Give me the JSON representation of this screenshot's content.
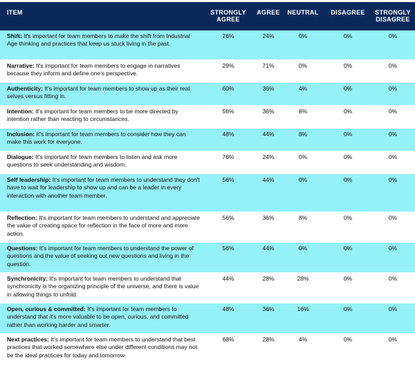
{
  "header": {
    "item": "ITEM",
    "strongly_agree": "STRONGLY AGREE",
    "agree": "AGREE",
    "neutral": "NEUTRAL",
    "disagree": "DISAGREE",
    "strongly_disagree": "STRONGLY DISAGREE"
  },
  "rows": [
    {
      "name": "Shift:",
      "text": " It's important for team members to make the shift from Industrial Age thinking and practices that keep us stuck living in the past.",
      "sa": "76%",
      "a": "24%",
      "n": "0%",
      "d": "0%",
      "sd": "0%"
    },
    {
      "name": "Narrative:",
      "text": " It's important for team members to engage in narratives because they inform and define one's perspective.",
      "sa": "29%",
      "a": "71%",
      "n": "0%",
      "d": "0%",
      "sd": "0%"
    },
    {
      "name": "Authenticity:",
      "text": " It's important for team members to show up as their real selves versus fitting in.",
      "sa": "60%",
      "a": "36%",
      "n": "4%",
      "d": "0%",
      "sd": "0%"
    },
    {
      "name": "Intention:",
      "text": " It's important for team members to be more directed by intention rather than reacting to circumstances.",
      "sa": "56%",
      "a": "36%",
      "n": "8%",
      "d": "0%",
      "sd": "0%"
    },
    {
      "name": "Inclusion:",
      "text": " It's important for team members to consider how they can make this work for everyone.",
      "sa": "48%",
      "a": "44%",
      "n": "8%",
      "d": "0%",
      "sd": "0%"
    },
    {
      "name": "Dialogue:",
      "text": " It's important for team members to listen and ask more questions to seek understanding and wisdom.",
      "sa": "76%",
      "a": "24%",
      "n": "0%",
      "d": "0%",
      "sd": "0%"
    },
    {
      "name": "Self leadership:",
      "text": " It's important for team members to understand they don't have to wait for leadership to show up and can be a leader in every interaction with another team member.",
      "sa": "56%",
      "a": "44%",
      "n": "0%",
      "d": "0%",
      "sd": "0%"
    },
    {
      "name": "Reflection:",
      "text": " It's important for team members to understand and appreciate the value of creating space for reflection in the face of more and more action.",
      "sa": "56%",
      "a": "36%",
      "n": "8%",
      "d": "0%",
      "sd": "0%"
    },
    {
      "name": "Questions:",
      "text": " It's important for team members to understand the power of questions and the value of seeking out new questions and living in the question.",
      "sa": "56%",
      "a": "44%",
      "n": "0%",
      "d": "0%",
      "sd": "0%"
    },
    {
      "name": "Synchronicity:",
      "text": " It's important for team members to understand that synchronicity is the organizing principle of the universe, and there is value in allowing things to unfold.",
      "sa": "44%",
      "a": "28%",
      "n": "28%",
      "d": "0%",
      "sd": "0%"
    },
    {
      "name": "Open, curious & committed:",
      "text": " It's important for team members to understand that it's more valuable to be open, curious, and committed rather than working harder and smarter.",
      "sa": "48%",
      "a": "36%",
      "n": "16%",
      "d": "0%",
      "sd": "0%"
    },
    {
      "name": "Next practices:",
      "text": " It's important for team members to understand that best practices that worked somewhere else under different conditions may not be the ideal practices for today and tomorrow.",
      "sa": "68%",
      "a": "28%",
      "n": "4%",
      "d": "0%",
      "sd": "0%"
    }
  ]
}
